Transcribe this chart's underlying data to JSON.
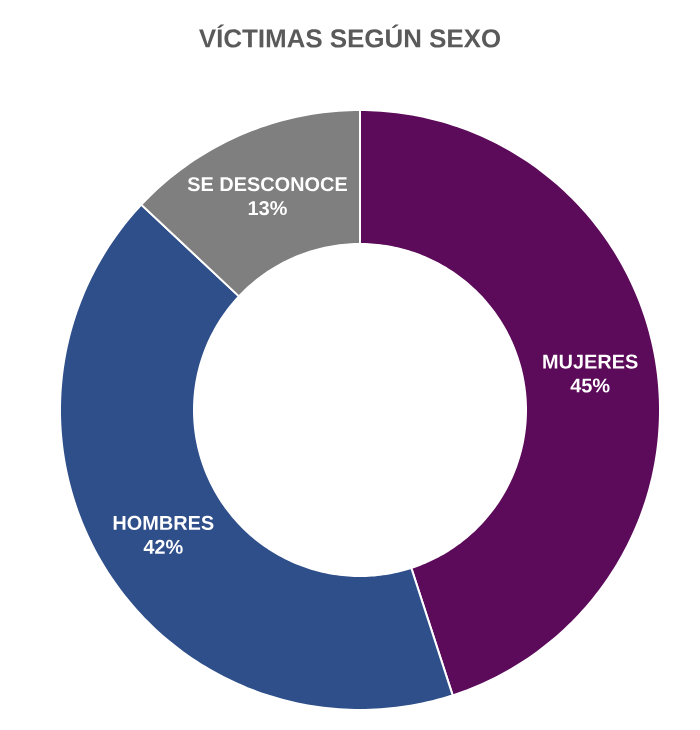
{
  "chart_data": {
    "type": "donut",
    "title": "VÍCTIMAS SEGÚN SEXO",
    "categories": [
      "MUJERES",
      "HOMBRES",
      "SE DESCONOCE"
    ],
    "values": [
      45,
      42,
      13
    ],
    "value_labels": [
      "45%",
      "42%",
      "13%"
    ],
    "colors": [
      "#5c0a5a",
      "#2f4f8a",
      "#7f7f7f"
    ]
  }
}
